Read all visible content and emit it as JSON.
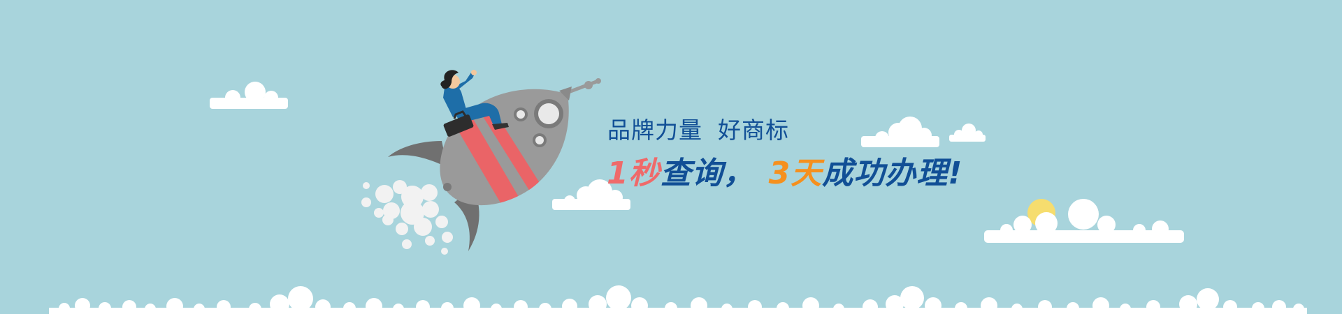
{
  "banner": {
    "background": "#a8d4dc",
    "headline": {
      "part1": "品牌力量",
      "part2": "好商标"
    },
    "slogan": {
      "num1": "1秒",
      "text1": "查询，",
      "num2": "3天",
      "text2": "成功办理!"
    },
    "colors": {
      "primary_blue": "#114f96",
      "accent_red": "#ef6a6a",
      "accent_orange": "#f5901e",
      "cloud": "#ffffff",
      "sun": "#f6dd6e",
      "rocket_body": "#9a9a9a",
      "rocket_stripe": "#ea6467"
    },
    "icons": [
      "rocket-icon",
      "person-icon",
      "briefcase-icon",
      "cloud-icon",
      "sun-icon",
      "smoke-icon"
    ]
  }
}
